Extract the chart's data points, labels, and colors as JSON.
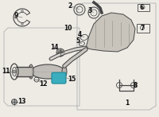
{
  "bg_color": "#eeebe5",
  "line_color": "#444444",
  "part_color": "#999999",
  "highlight_color": "#3aadbe",
  "text_color": "#111111",
  "label_fontsize": 5.2,
  "box_color": "#bbbbbb",
  "pipe_color": "#b0b0b0",
  "cat_body_color": "#c8c4bc",
  "muff_color": "#c0bdb8"
}
